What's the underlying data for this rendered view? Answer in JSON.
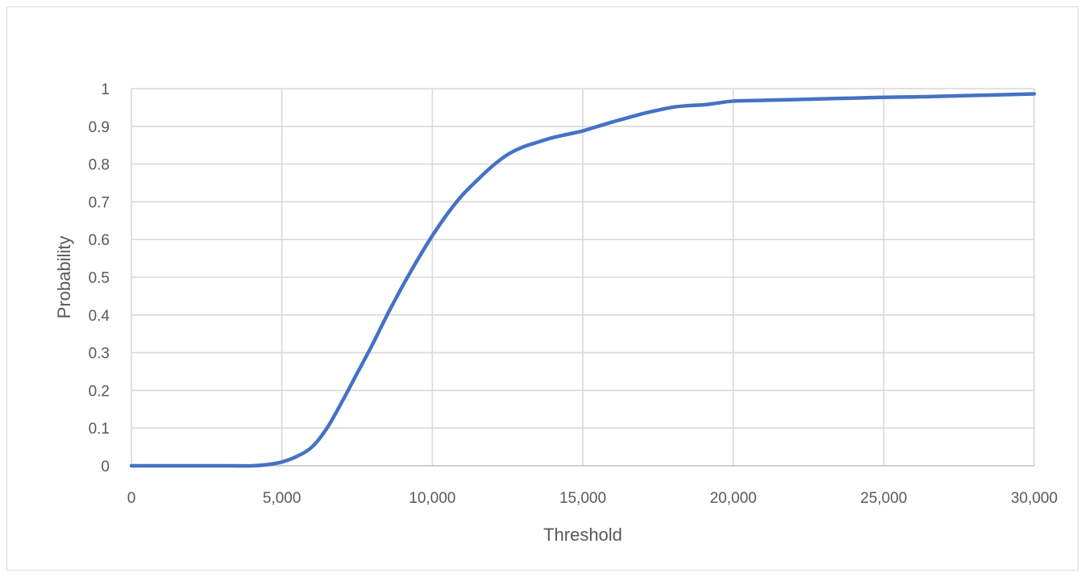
{
  "chart_data": {
    "type": "line",
    "title": "",
    "xlabel": "Threshold",
    "ylabel": "Probability",
    "xlim": [
      0,
      30000
    ],
    "ylim": [
      0,
      1
    ],
    "grid": true,
    "legend": "none",
    "x_ticks": [
      0,
      5000,
      10000,
      15000,
      20000,
      25000,
      30000
    ],
    "x_tick_labels": [
      "0",
      "5,000",
      "10,000",
      "15,000",
      "20,000",
      "25,000",
      "30,000"
    ],
    "y_ticks": [
      0,
      0.1,
      0.2,
      0.3,
      0.4,
      0.5,
      0.6,
      0.7,
      0.8,
      0.9,
      1
    ],
    "y_tick_labels": [
      "0",
      "0.1",
      "0.2",
      "0.3",
      "0.4",
      "0.5",
      "0.6",
      "0.7",
      "0.8",
      "0.9",
      "1"
    ],
    "series": [
      {
        "color": "#4472c4",
        "x": [
          0,
          1000,
          2000,
          3000,
          4000,
          4500,
          5000,
          5500,
          6000,
          6500,
          7000,
          7500,
          8000,
          8500,
          9000,
          9500,
          10000,
          10500,
          11000,
          11500,
          12000,
          12500,
          13000,
          13500,
          14000,
          14500,
          15000,
          15500,
          16000,
          16500,
          17000,
          17500,
          18000,
          18500,
          19000,
          19500,
          20000,
          21000,
          22000,
          23000,
          24000,
          25000,
          26000,
          27000,
          28000,
          29000,
          30000
        ],
        "y": [
          0,
          0,
          0,
          0,
          0,
          0.003,
          0.01,
          0.025,
          0.05,
          0.1,
          0.17,
          0.245,
          0.32,
          0.4,
          0.475,
          0.545,
          0.61,
          0.668,
          0.718,
          0.758,
          0.795,
          0.825,
          0.845,
          0.858,
          0.87,
          0.879,
          0.888,
          0.9,
          0.912,
          0.923,
          0.934,
          0.943,
          0.951,
          0.955,
          0.957,
          0.962,
          0.967,
          0.969,
          0.971,
          0.973,
          0.975,
          0.977,
          0.978,
          0.98,
          0.982,
          0.984,
          0.986
        ]
      }
    ]
  }
}
